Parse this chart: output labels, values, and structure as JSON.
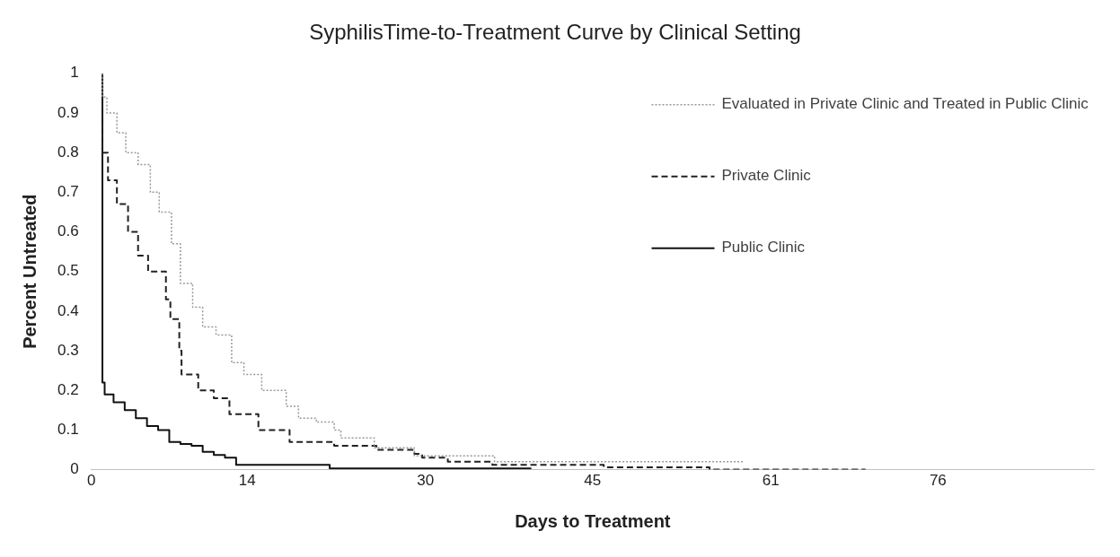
{
  "chart_data": {
    "type": "step",
    "title": "SyphilisTime-to-Treatment Curve by Clinical Setting",
    "xlabel": "Days to Treatment",
    "ylabel": "Percent Untreated",
    "xlim": [
      0,
      90
    ],
    "xticks": [
      0,
      14,
      30,
      45,
      61,
      76
    ],
    "ylim": [
      0,
      1
    ],
    "yticks": [
      0,
      0.1,
      0.2,
      0.3,
      0.4,
      0.5,
      0.6,
      0.7,
      0.8,
      0.9,
      1
    ],
    "grid": false,
    "legend": "top right",
    "marker": "none",
    "series": [
      {
        "name": "Evaluated in Private Clinic and Treated in Public Clinic",
        "color": "#999999",
        "line_style": "dotted",
        "x": [
          1,
          1.4,
          2.3,
          3.1,
          4.2,
          5.3,
          6.1,
          7.2,
          8,
          9.1,
          10,
          11.2,
          12.6,
          13.7,
          15.3,
          17.5,
          18.6,
          20.2,
          21.8,
          22.4,
          25.4,
          29,
          36.2,
          40.3,
          58.5
        ],
        "values": [
          1,
          0.94,
          0.9,
          0.85,
          0.8,
          0.77,
          0.7,
          0.65,
          0.57,
          0.47,
          0.41,
          0.36,
          0.34,
          0.27,
          0.24,
          0.2,
          0.16,
          0.13,
          0.12,
          0.1,
          0.08,
          0.055,
          0.035,
          0.02,
          0.02
        ]
      },
      {
        "name": "Private Clinic",
        "color": "#222222",
        "line_style": "dashed",
        "x": [
          1,
          1.5,
          2.3,
          3.3,
          4.2,
          5.1,
          6.7,
          7.1,
          7.9,
          8.1,
          9.6,
          11,
          12.4,
          15,
          17.8,
          21.8,
          25.6,
          29,
          29.7,
          32,
          36,
          46,
          55.5,
          69.5
        ],
        "values": [
          1,
          0.8,
          0.73,
          0.67,
          0.6,
          0.54,
          0.5,
          0.43,
          0.38,
          0.3,
          0.24,
          0.2,
          0.18,
          0.14,
          0.1,
          0.07,
          0.06,
          0.05,
          0.04,
          0.03,
          0.02,
          0.012,
          0.006,
          0
        ]
      },
      {
        "name": "Public Clinic",
        "color": "#111111",
        "line_style": "solid",
        "x": [
          1,
          1.2,
          2,
          3,
          4,
          5,
          6,
          7,
          8,
          9,
          10,
          11,
          12,
          13,
          21.4,
          26,
          39.5
        ],
        "values": [
          1,
          0.22,
          0.19,
          0.17,
          0.15,
          0.13,
          0.11,
          0.1,
          0.07,
          0.065,
          0.06,
          0.045,
          0.037,
          0.03,
          0.012,
          0.003,
          0.003
        ]
      }
    ]
  }
}
